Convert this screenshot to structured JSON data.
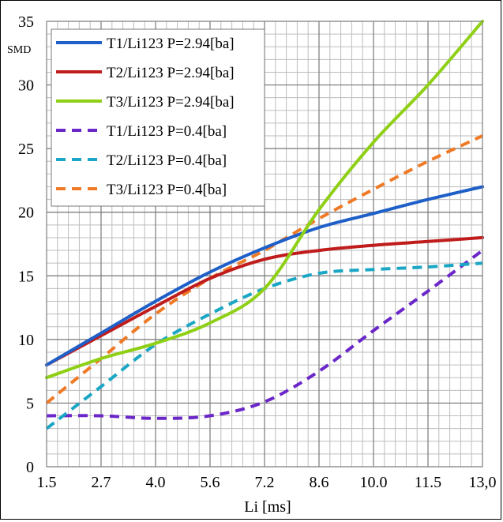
{
  "chart_data": {
    "type": "line",
    "title": "",
    "xlabel": "Li [ms]",
    "ylabel": "SMD",
    "x_tick_labels": [
      "1.5",
      "2.7",
      "4.0",
      "5.6",
      "7.2",
      "8.6",
      "10.0",
      "11.5",
      "13,0"
    ],
    "x_tick_values": [
      1.5,
      2.7,
      4.0,
      5.6,
      7.2,
      8.6,
      10.0,
      11.5,
      13.0
    ],
    "y_tick_labels": [
      "0",
      "5",
      "10",
      "15",
      "20",
      "25",
      "30",
      "35"
    ],
    "xlim": [
      1.5,
      13.0
    ],
    "ylim": [
      0,
      35
    ],
    "grid": true,
    "legend_position": "top-left",
    "series": [
      {
        "name": "T1/Li123 P=2.94[ba]",
        "color": "#1f5fc8",
        "style": "solid",
        "x": [
          1.5,
          2.7,
          4.0,
          5.6,
          7.2,
          8.6,
          10.0,
          11.5,
          13.0
        ],
        "y": [
          8.0,
          10.5,
          13.0,
          15.3,
          17.2,
          18.8,
          19.9,
          21.0,
          22.0
        ]
      },
      {
        "name": "T2/Li123 P=2.94[ba]",
        "color": "#c01c1c",
        "style": "solid",
        "x": [
          1.5,
          2.7,
          4.0,
          5.6,
          7.2,
          8.6,
          10.0,
          11.5,
          13.0
        ],
        "y": [
          8.0,
          10.3,
          12.6,
          14.8,
          16.3,
          17.0,
          17.4,
          17.7,
          18.0
        ]
      },
      {
        "name": "T3/Li123 P=2.94[ba]",
        "color": "#8fd017",
        "style": "solid",
        "x": [
          1.5,
          2.7,
          4.0,
          5.6,
          7.2,
          8.6,
          10.0,
          11.5,
          13.0
        ],
        "y": [
          7.0,
          8.5,
          9.7,
          11.3,
          14.0,
          20.2,
          25.5,
          30.0,
          35.0
        ]
      },
      {
        "name": "T1/Li123 P=0.4[ba]",
        "color": "#6a26c9",
        "style": "dashed",
        "x": [
          1.5,
          2.7,
          4.0,
          5.6,
          7.2,
          8.6,
          10.0,
          11.5,
          13.0
        ],
        "y": [
          4.0,
          4.0,
          3.8,
          4.0,
          5.1,
          7.5,
          10.7,
          13.8,
          17.0
        ]
      },
      {
        "name": "T2/Li123 P=0.4[ba]",
        "color": "#1aa6c4",
        "style": "dashed",
        "x": [
          1.5,
          2.7,
          4.0,
          5.6,
          7.2,
          8.6,
          10.0,
          11.5,
          13.0
        ],
        "y": [
          3.0,
          6.3,
          9.6,
          12.0,
          14.0,
          15.2,
          15.5,
          15.7,
          16.0
        ]
      },
      {
        "name": "T3/Li123 P=0.4[ba]",
        "color": "#ef7a26",
        "style": "dashed",
        "x": [
          1.5,
          2.7,
          4.0,
          5.6,
          7.2,
          8.6,
          10.0,
          11.5,
          13.0
        ],
        "y": [
          5.0,
          8.5,
          12.0,
          14.8,
          17.0,
          19.5,
          21.8,
          24.0,
          26.0
        ]
      }
    ]
  }
}
